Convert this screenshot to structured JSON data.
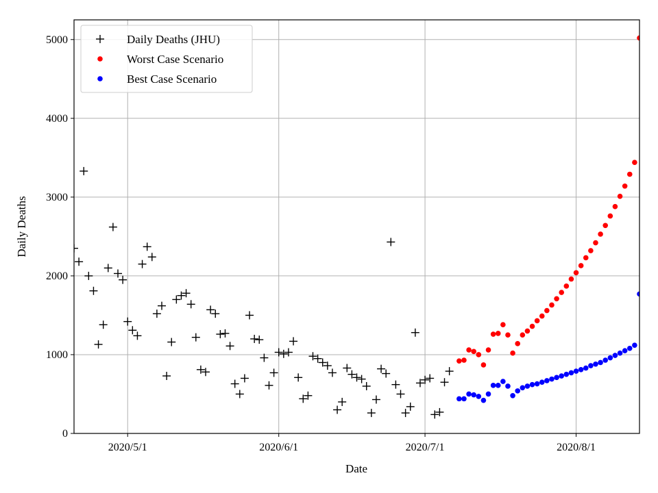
{
  "chart_data": {
    "type": "scatter",
    "xlabel": "Date",
    "ylabel": "Daily Deaths",
    "xlim": [
      "2020-04-20",
      "2020-08-14"
    ],
    "ylim": [
      0,
      5250
    ],
    "grid": true,
    "legend_position": "top-left",
    "x_ticks": [
      {
        "date": "2020-05-01",
        "label": "2020/5/1"
      },
      {
        "date": "2020-06-01",
        "label": "2020/6/1"
      },
      {
        "date": "2020-07-01",
        "label": "2020/7/1"
      },
      {
        "date": "2020-08-01",
        "label": "2020/8/1"
      }
    ],
    "y_ticks": [
      0,
      1000,
      2000,
      3000,
      4000,
      5000
    ],
    "series": [
      {
        "name": "Daily Deaths (JHU)",
        "marker": "plus",
        "color": "#000000",
        "x_start": "2020-04-20",
        "values": [
          2350,
          2180,
          3330,
          2000,
          1810,
          1130,
          1380,
          2100,
          2620,
          2030,
          1950,
          1420,
          1310,
          1240,
          2150,
          2370,
          2240,
          1520,
          1620,
          730,
          1160,
          1700,
          1750,
          1780,
          1640,
          1220,
          810,
          780,
          1570,
          1520,
          1260,
          1270,
          1110,
          630,
          500,
          700,
          1500,
          1200,
          1190,
          960,
          610,
          770,
          1030,
          1010,
          1030,
          1170,
          710,
          440,
          480,
          980,
          950,
          900,
          860,
          770,
          300,
          400,
          830,
          750,
          710,
          690,
          600,
          260,
          430,
          820,
          760,
          2430,
          620,
          500,
          260,
          340,
          1280,
          640,
          680,
          700,
          240,
          270,
          650,
          790
        ]
      },
      {
        "name": "Worst Case Scenario",
        "marker": "dot",
        "color": "#ff0000",
        "x_start": "2020-07-08",
        "values": [
          920,
          930,
          1060,
          1040,
          1000,
          870,
          1060,
          1260,
          1270,
          1380,
          1250,
          1020,
          1140,
          1250,
          1300,
          1360,
          1430,
          1490,
          1560,
          1630,
          1710,
          1790,
          1870,
          1960,
          2040,
          2130,
          2230,
          2320,
          2420,
          2530,
          2640,
          2760,
          2880,
          3010,
          3140,
          3290,
          3440,
          5020
        ]
      },
      {
        "name": "Best Case Scenario",
        "marker": "dot",
        "color": "#0000ff",
        "x_start": "2020-07-08",
        "values": [
          440,
          440,
          500,
          490,
          470,
          420,
          500,
          610,
          610,
          660,
          600,
          480,
          540,
          580,
          600,
          620,
          630,
          650,
          670,
          690,
          710,
          730,
          750,
          770,
          790,
          810,
          830,
          860,
          880,
          900,
          930,
          960,
          990,
          1020,
          1050,
          1080,
          1120,
          1770
        ]
      }
    ]
  }
}
